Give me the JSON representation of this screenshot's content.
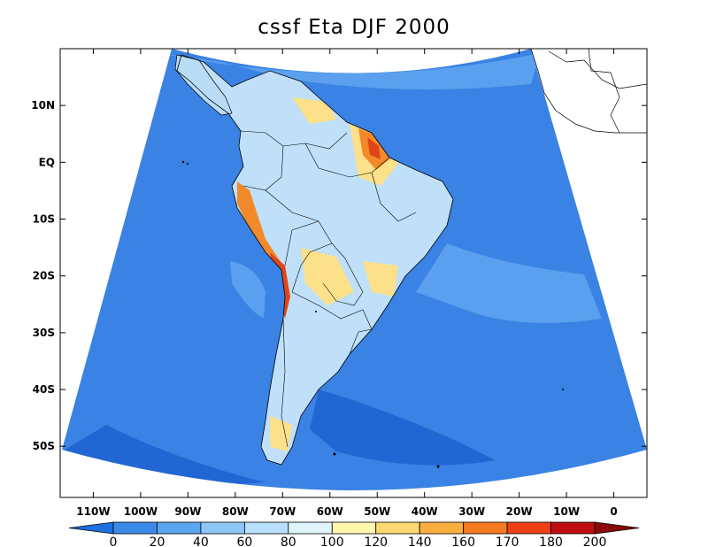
{
  "map": {
    "title": "cssf Eta DJF 2000",
    "lat_labels": [
      "10N",
      "EQ",
      "10S",
      "20S",
      "30S",
      "40S",
      "50S"
    ],
    "lon_labels": [
      "110W",
      "100W",
      "90W",
      "80W",
      "70W",
      "60W",
      "50W",
      "40W",
      "30W",
      "20W",
      "10W",
      "0"
    ],
    "frame": {
      "lon_range": [
        -117,
        7
      ],
      "lat_range": [
        -59,
        20
      ]
    }
  },
  "colorbar": {
    "labels": [
      "0",
      "20",
      "40",
      "60",
      "80",
      "100",
      "120",
      "140",
      "160",
      "170",
      "180",
      "200"
    ],
    "colors": [
      "#1e6fe0",
      "#3a8ae8",
      "#5aa5f0",
      "#8fc6f6",
      "#b8e0fa",
      "#e0f4fc",
      "#fff6b0",
      "#fcd870",
      "#fbae40",
      "#f67a20",
      "#ee4018",
      "#c00e10",
      "#8a0808"
    ]
  },
  "colors": {
    "ocean": "#3a82e4",
    "ocean_dark": "#2266d4",
    "ocean_light": "#5aa0ee",
    "land_base": "#bfe0f8",
    "land_warm": "#fce08a",
    "land_hot": "#f28a2c",
    "land_red": "#e0451a"
  }
}
